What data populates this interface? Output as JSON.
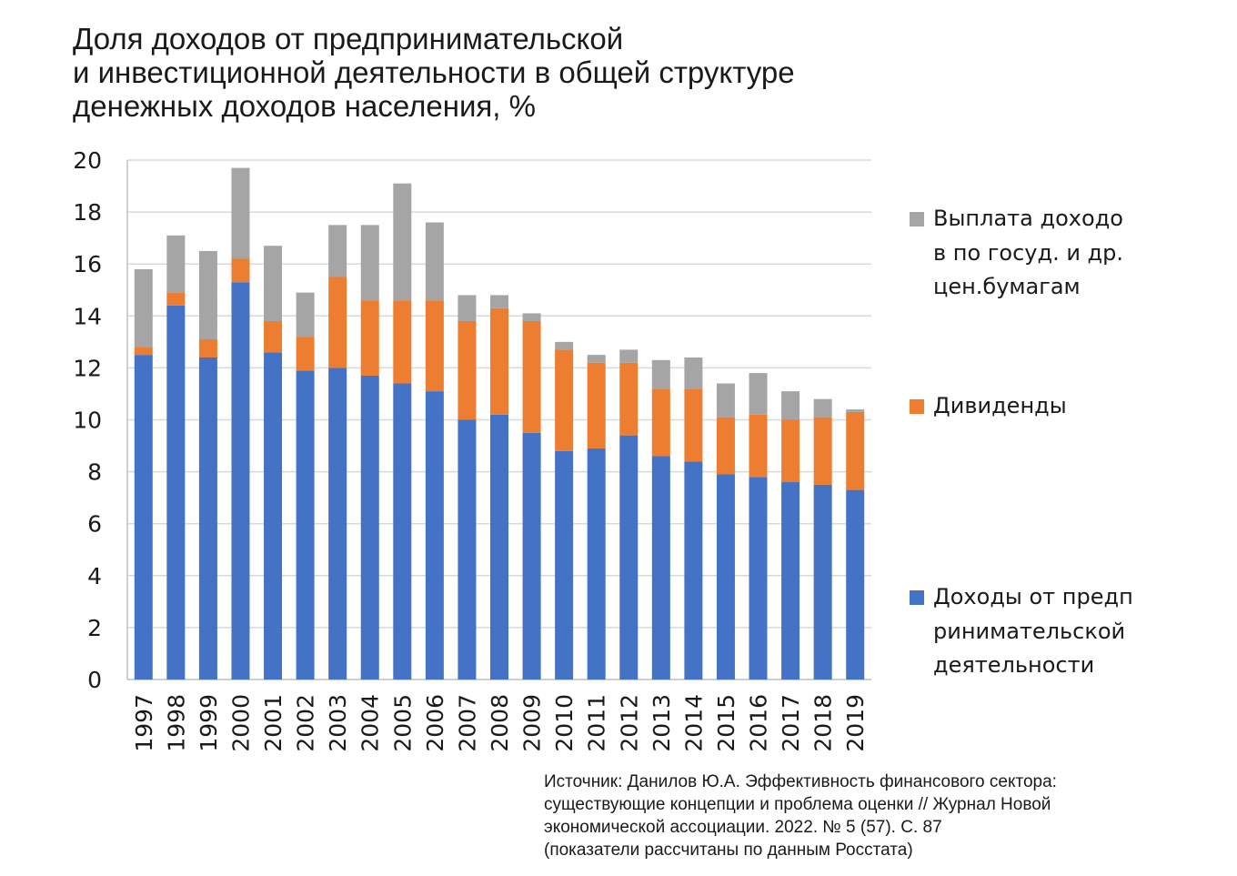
{
  "title_lines": [
    "Доля доходов от предпринимательской",
    "и инвестиционной деятельности в общей структуре",
    "денежных доходов населения, %"
  ],
  "source_lines": [
    "Источник: Данилов Ю.А. Эффективность финансового сектора:",
    "существующие концепции и проблема оценки // Журнал Новой",
    "экономической ассоциации. 2022. № 5 (57). С. 87",
    "(показатели рассчитаны по данным Росстата)"
  ],
  "colors": {
    "business": "#4472C4",
    "dividends": "#ED7D31",
    "securities": "#A5A5A5",
    "grid": "#D9D9D9",
    "axis": "#BFBFBF"
  },
  "chart_data": {
    "type": "bar",
    "stacked": true,
    "title": "Доля доходов от предпринимательской и инвестиционной деятельности в общей структуре денежных доходов населения, %",
    "categories": [
      "1997",
      "1998",
      "1999",
      "2000",
      "2001",
      "2002",
      "2003",
      "2004",
      "2005",
      "2006",
      "2007",
      "2008",
      "2009",
      "2010",
      "2011",
      "2012",
      "2013",
      "2014",
      "2015",
      "2016",
      "2017",
      "2018",
      "2019"
    ],
    "series": [
      {
        "name": "Доходы от предпринимательской деятельности",
        "color": "#4472C4",
        "values": [
          12.5,
          14.4,
          12.4,
          15.3,
          12.6,
          11.9,
          12.0,
          11.7,
          11.4,
          11.1,
          10.0,
          10.2,
          9.5,
          8.8,
          8.9,
          9.4,
          8.6,
          8.4,
          7.9,
          7.8,
          7.6,
          7.5,
          7.3
        ]
      },
      {
        "name": "Дивиденды",
        "color": "#ED7D31",
        "values": [
          0.3,
          0.5,
          0.7,
          0.9,
          1.2,
          1.3,
          3.5,
          2.9,
          3.2,
          3.5,
          3.8,
          4.1,
          4.3,
          3.9,
          3.3,
          2.8,
          2.6,
          2.8,
          2.2,
          2.4,
          2.4,
          2.6,
          3.0
        ]
      },
      {
        "name": "Выплата доходов по госуд. и др.цен.бумагам",
        "color": "#A5A5A5",
        "values": [
          3.0,
          2.2,
          3.4,
          3.5,
          2.9,
          1.7,
          2.0,
          2.9,
          4.5,
          3.0,
          1.0,
          0.5,
          0.3,
          0.3,
          0.3,
          0.5,
          1.1,
          1.2,
          1.3,
          1.6,
          1.1,
          0.7,
          0.1
        ]
      }
    ],
    "ylim": [
      0,
      20
    ],
    "yticks": [
      0,
      2,
      4,
      6,
      8,
      10,
      12,
      14,
      16,
      18,
      20
    ],
    "grid": true,
    "legend_position": "right",
    "xlabel": "",
    "ylabel": ""
  }
}
